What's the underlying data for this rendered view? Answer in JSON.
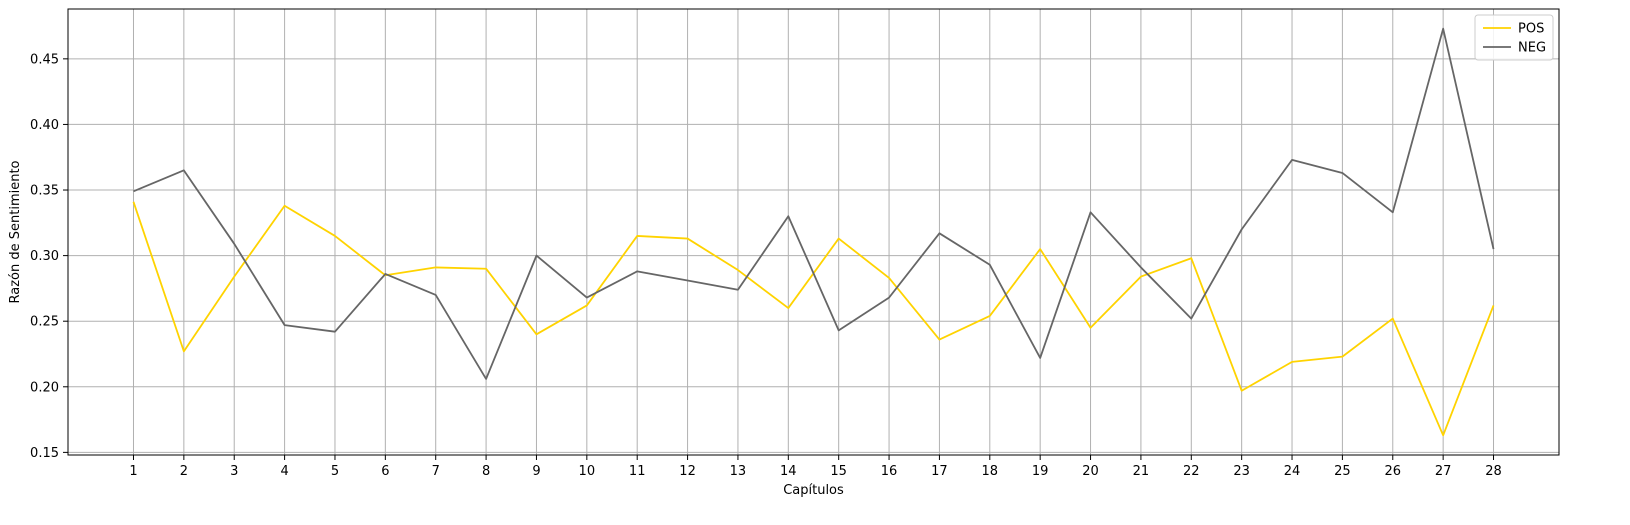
{
  "chart_data": {
    "type": "line",
    "title": "",
    "xlabel": "Capítulos",
    "ylabel": "Razón de Sentimiento",
    "x": [
      1,
      2,
      3,
      4,
      5,
      6,
      7,
      8,
      9,
      10,
      11,
      12,
      13,
      14,
      15,
      16,
      17,
      18,
      19,
      20,
      21,
      22,
      23,
      24,
      25,
      26,
      27,
      28
    ],
    "xlim": [
      -0.3,
      29.3
    ],
    "ylim": [
      0.148,
      0.488
    ],
    "yticks": [
      "0.15",
      "0.20",
      "0.25",
      "0.30",
      "0.35",
      "0.40",
      "0.45"
    ],
    "grid": true,
    "legend_position": "top-right",
    "series": [
      {
        "name": "POS",
        "color": "#FFD300",
        "values": [
          0.341,
          0.227,
          0.284,
          0.338,
          0.315,
          0.285,
          0.291,
          0.29,
          0.24,
          0.262,
          0.315,
          0.313,
          0.289,
          0.26,
          0.313,
          0.283,
          0.236,
          0.254,
          0.305,
          0.245,
          0.284,
          0.298,
          0.197,
          0.219,
          0.223,
          0.252,
          0.163,
          0.262
        ]
      },
      {
        "name": "NEG",
        "color": "#666666",
        "values": [
          0.349,
          0.365,
          0.309,
          0.247,
          0.242,
          0.286,
          0.27,
          0.206,
          0.3,
          0.268,
          0.288,
          0.281,
          0.274,
          0.33,
          0.243,
          0.268,
          0.317,
          0.293,
          0.222,
          0.333,
          0.291,
          0.252,
          0.32,
          0.373,
          0.363,
          0.333,
          0.473,
          0.305
        ]
      }
    ]
  }
}
